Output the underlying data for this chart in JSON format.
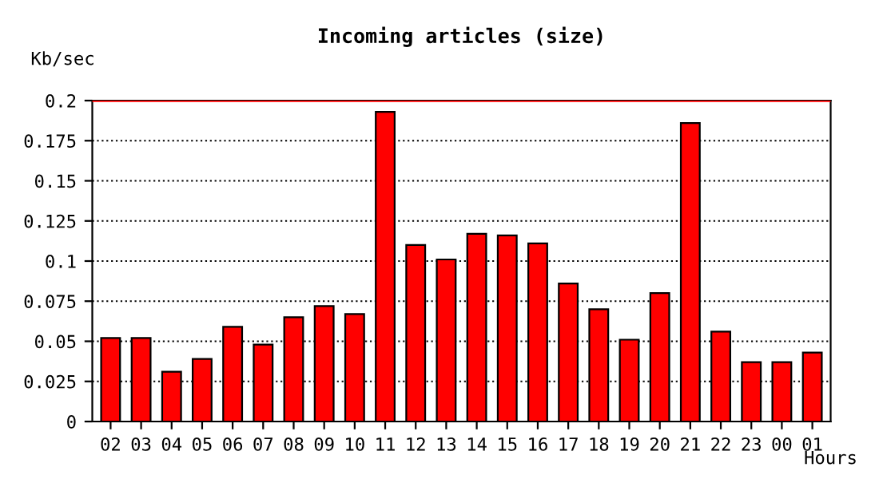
{
  "chart_data": {
    "type": "bar",
    "title": "Incoming articles (size)",
    "ylabel": "Kb/sec",
    "xlabel": "Hours",
    "categories": [
      "02",
      "03",
      "04",
      "05",
      "06",
      "07",
      "08",
      "09",
      "10",
      "11",
      "12",
      "13",
      "14",
      "15",
      "16",
      "17",
      "18",
      "19",
      "20",
      "21",
      "22",
      "23",
      "00",
      "01"
    ],
    "values": [
      0.052,
      0.052,
      0.031,
      0.039,
      0.059,
      0.048,
      0.065,
      0.072,
      0.067,
      0.193,
      0.11,
      0.101,
      0.117,
      0.116,
      0.111,
      0.086,
      0.07,
      0.051,
      0.08,
      0.186,
      0.056,
      0.037,
      0.037,
      0.043
    ],
    "color": "#ff0000",
    "ylim": [
      0,
      0.2
    ],
    "yticks": [
      0,
      0.025,
      0.05,
      0.075,
      0.1,
      0.125,
      0.15,
      0.175,
      0.2
    ],
    "grid": "y",
    "line_style": "dotted",
    "ref_lines": [
      {
        "axis": "y",
        "value": 0.2,
        "color": "#ff0000"
      }
    ]
  }
}
